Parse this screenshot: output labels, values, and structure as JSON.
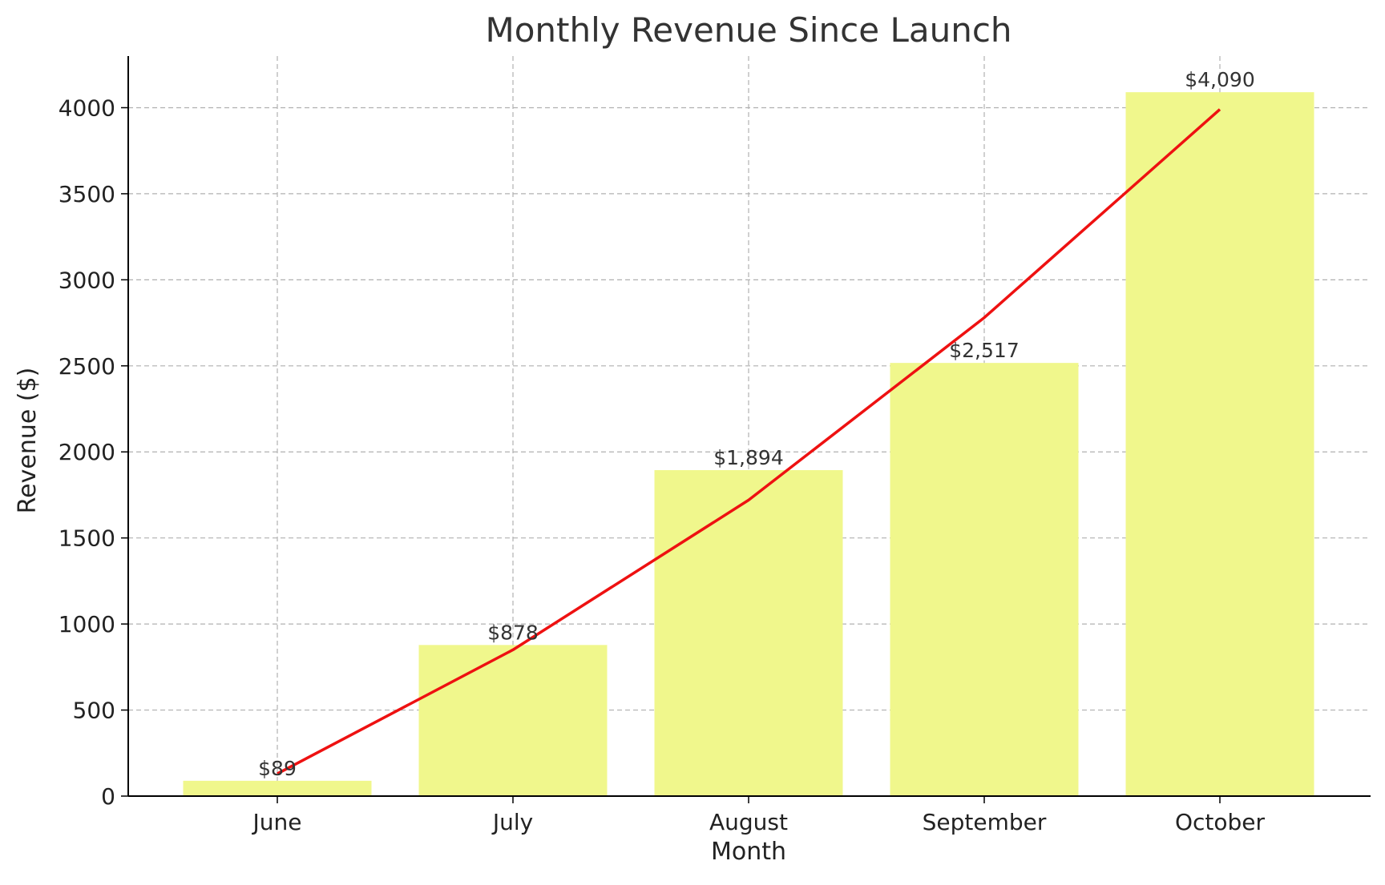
{
  "chart_data": {
    "type": "bar",
    "title": "Monthly Revenue Since Launch",
    "xlabel": "Month",
    "ylabel": "Revenue ($)",
    "categories": [
      "June",
      "July",
      "August",
      "September",
      "October"
    ],
    "values": [
      89,
      878,
      1894,
      2517,
      4090
    ],
    "value_labels": [
      "$89",
      "$878",
      "$1,894",
      "$2,517",
      "$4,090"
    ],
    "trend_line": [
      130,
      850,
      1720,
      2780,
      3990
    ],
    "ylim": [
      0,
      4300
    ],
    "yticks": [
      0,
      500,
      1000,
      1500,
      2000,
      2500,
      3000,
      3500,
      4000
    ],
    "grid": true,
    "colors": {
      "bar": "#f0f78c",
      "line": "#ee1111",
      "grid": "#b0b0b0",
      "text": "#333333",
      "axis": "#000000"
    }
  }
}
